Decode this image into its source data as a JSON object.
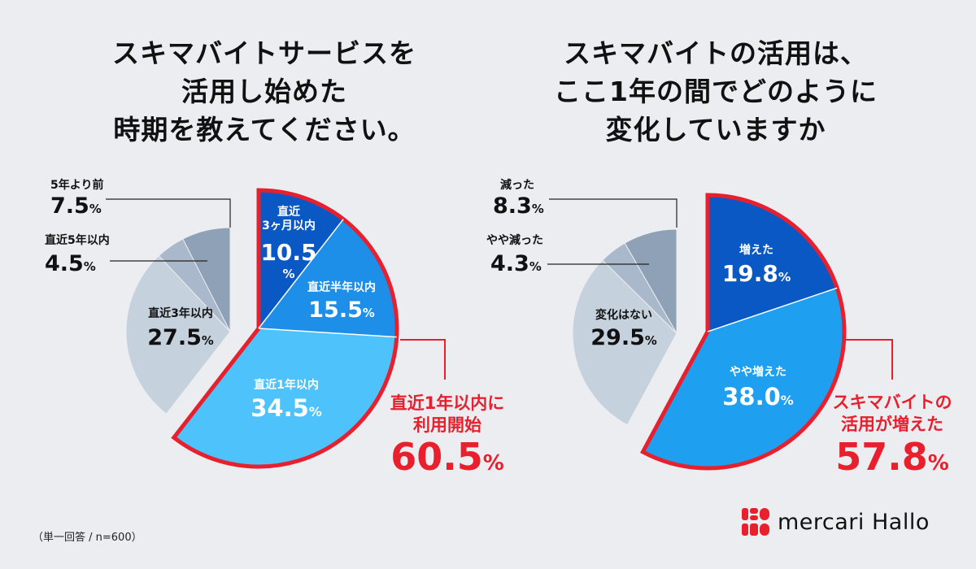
{
  "chart_data": [
    {
      "type": "pie",
      "title": [
        "スキマバイトサービスを",
        "活用し始めた",
        "時期を教えてください。"
      ],
      "slices": [
        {
          "label": "直近3ヶ月以内",
          "value": 10.5,
          "color": "#0a58c4",
          "display_lines": [
            "直近",
            "3ヶ月以内"
          ],
          "value_lines": [
            "10.5",
            "%"
          ],
          "highlight": true
        },
        {
          "label": "直近半年以内",
          "value": 15.5,
          "color": "#1e8fe8",
          "display_lines": [
            "直近半年以内"
          ],
          "value_lines": [
            "15.5%"
          ],
          "highlight": true
        },
        {
          "label": "直近1年以内",
          "value": 34.5,
          "color": "#4ec2fb",
          "display_lines": [
            "直近1年以内"
          ],
          "value_lines": [
            "34.5%"
          ],
          "highlight": true
        },
        {
          "label": "直近3年以内",
          "value": 27.5,
          "color": "#c6d1de",
          "display_lines": [
            "直近3年以内"
          ],
          "value_lines": [
            "27.5%"
          ],
          "highlight": false
        },
        {
          "label": "直近5年以内",
          "value": 4.5,
          "color": "#a9b8ca",
          "display_lines": [
            "直近5年以内"
          ],
          "value_lines": [
            "4.5%"
          ],
          "highlight": false,
          "external": true
        },
        {
          "label": "5年より前",
          "value": 7.5,
          "color": "#8ea1b7",
          "display_lines": [
            "5年より前"
          ],
          "value_lines": [
            "7.5%"
          ],
          "highlight": false,
          "external": true
        }
      ],
      "callout": {
        "lines": [
          "直近1年以内に",
          "利用開始"
        ],
        "value": "60.5",
        "unit": "%"
      }
    },
    {
      "type": "pie",
      "title": [
        "スキマバイトの活用は、",
        "ここ1年の間でどのように",
        "変化していますか"
      ],
      "slices": [
        {
          "label": "増えた",
          "value": 19.8,
          "color": "#0a58c4",
          "display_lines": [
            "増えた"
          ],
          "value_lines": [
            "19.8%"
          ],
          "highlight": true
        },
        {
          "label": "やや増えた",
          "value": 38.0,
          "color": "#1e9ff0",
          "display_lines": [
            "やや増えた"
          ],
          "value_lines": [
            "38.0%"
          ],
          "highlight": true
        },
        {
          "label": "変化はない",
          "value": 29.5,
          "color": "#c6d1de",
          "display_lines": [
            "変化はない"
          ],
          "value_lines": [
            "29.5%"
          ],
          "highlight": false
        },
        {
          "label": "やや減った",
          "value": 4.3,
          "color": "#a9b8ca",
          "display_lines": [
            "やや減った"
          ],
          "value_lines": [
            "4.3%"
          ],
          "highlight": false,
          "external": true
        },
        {
          "label": "減った",
          "value": 8.3,
          "color": "#8ea1b7",
          "display_lines": [
            "減った"
          ],
          "value_lines": [
            "8.3%"
          ],
          "highlight": false,
          "external": true
        }
      ],
      "callout": {
        "lines": [
          "スキマバイトの",
          "活用が増えた"
        ],
        "value": "57.8",
        "unit": "%"
      }
    }
  ],
  "footnote": "（単一回答 / n=600）",
  "logo": {
    "text": "mercari Hallo",
    "brand_color": "#e8202e"
  },
  "colors": {
    "highlight_outline": "#e8202e",
    "text_dark": "#111111",
    "text_light": "#ffffff"
  }
}
